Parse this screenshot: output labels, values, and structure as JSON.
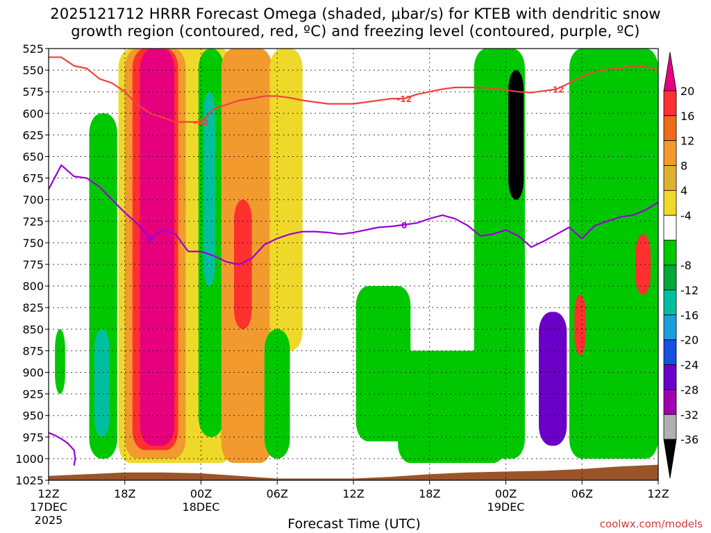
{
  "header": {
    "title_line1": "2025121712 HRRR Forecast Omega (shaded, μbar/s) for KTEB with dendritic snow",
    "title_line2": "growth region (contoured, red, ºC) and freezing level (contoured, purple, ºC)"
  },
  "footer": {
    "site": "coolwx.com/models"
  },
  "chart_data": {
    "type": "heatmap",
    "title": "2025121712 HRRR Forecast Omega (shaded, μbar/s) for KTEB with dendritic snow growth region (contoured, red, ºC) and freezing level (contoured, purple, ºC)",
    "xlabel": "Forecast Time (UTC)",
    "ylabel": "Pressure (hPa)",
    "x_range_hours": [
      0,
      48
    ],
    "x_ticks": [
      {
        "hour": 0,
        "label": "12Z",
        "sub1": "17DEC",
        "sub2": "2025"
      },
      {
        "hour": 6,
        "label": "18Z",
        "sub1": "",
        "sub2": ""
      },
      {
        "hour": 12,
        "label": "00Z",
        "sub1": "18DEC",
        "sub2": ""
      },
      {
        "hour": 18,
        "label": "06Z",
        "sub1": "",
        "sub2": ""
      },
      {
        "hour": 24,
        "label": "12Z",
        "sub1": "",
        "sub2": ""
      },
      {
        "hour": 30,
        "label": "18Z",
        "sub1": "",
        "sub2": ""
      },
      {
        "hour": 36,
        "label": "00Z",
        "sub1": "19DEC",
        "sub2": ""
      },
      {
        "hour": 42,
        "label": "06Z",
        "sub1": "",
        "sub2": ""
      },
      {
        "hour": 48,
        "label": "12Z",
        "sub1": "",
        "sub2": ""
      }
    ],
    "y_ticks": [
      525,
      550,
      575,
      600,
      625,
      650,
      675,
      700,
      725,
      750,
      775,
      800,
      825,
      850,
      875,
      900,
      925,
      950,
      975,
      1000,
      1025
    ],
    "y_range_hpa": [
      525,
      1025
    ],
    "colorbar": {
      "labels": [
        "20",
        "16",
        "12",
        "8",
        "4",
        "-4",
        "-8",
        "-12",
        "-16",
        "-20",
        "-24",
        "-28",
        "-32",
        "-36"
      ],
      "bins": [
        {
          "color": "#e6007e"
        },
        {
          "color": "#ff3030"
        },
        {
          "color": "#f06a1c"
        },
        {
          "color": "#f29a2e"
        },
        {
          "color": "#e0b030"
        },
        {
          "color": "#eed92a"
        },
        {
          "color": "#ffffff"
        },
        {
          "color": "#00c800"
        },
        {
          "color": "#00a838"
        },
        {
          "color": "#00bfa0"
        },
        {
          "color": "#18a0dc"
        },
        {
          "color": "#1850e0"
        },
        {
          "color": "#6a00c8"
        },
        {
          "color": "#a000b0"
        },
        {
          "color": "#b0b0b0"
        },
        {
          "color": "#000000"
        }
      ]
    },
    "omega_features": [
      {
        "name": "upward-core-green-early",
        "t0": 3.2,
        "t1": 5.4,
        "p_top": 600,
        "p_bot": 1000,
        "color": "#00c800"
      },
      {
        "name": "upward-core-teal-early",
        "t0": 3.6,
        "t1": 4.8,
        "p_top": 850,
        "p_bot": 975,
        "color": "#00bfa0"
      },
      {
        "name": "upward-green-small",
        "t0": 0.5,
        "t1": 1.3,
        "p_top": 850,
        "p_bot": 925,
        "color": "#00c800"
      },
      {
        "name": "downward-yellow-band",
        "t0": 5.5,
        "t1": 14.5,
        "p_top": 525,
        "p_bot": 1005,
        "color": "#eed92a"
      },
      {
        "name": "downward-orange-band",
        "t0": 6.0,
        "t1": 10.8,
        "p_top": 525,
        "p_bot": 1000,
        "color": "#f29a2e"
      },
      {
        "name": "downward-red-band",
        "t0": 6.6,
        "t1": 10.2,
        "p_top": 525,
        "p_bot": 990,
        "color": "#ff3030"
      },
      {
        "name": "downward-magenta-core",
        "t0": 7.2,
        "t1": 9.9,
        "p_top": 525,
        "p_bot": 985,
        "color": "#e6007e"
      },
      {
        "name": "upward-green-midnight",
        "t0": 11.8,
        "t1": 13.8,
        "p_top": 525,
        "p_bot": 975,
        "color": "#00c800"
      },
      {
        "name": "upward-teal-midnight",
        "t0": 12.2,
        "t1": 13.1,
        "p_top": 575,
        "p_bot": 800,
        "color": "#00bfa0"
      },
      {
        "name": "downward-orange-18dec",
        "t0": 13.6,
        "t1": 17.6,
        "p_top": 525,
        "p_bot": 1005,
        "color": "#f29a2e"
      },
      {
        "name": "downward-red-18dec",
        "t0": 14.6,
        "t1": 16.0,
        "p_top": 700,
        "p_bot": 850,
        "color": "#ff3030"
      },
      {
        "name": "downward-yellow-06z",
        "t0": 17.4,
        "t1": 20.0,
        "p_top": 525,
        "p_bot": 875,
        "color": "#eed92a"
      },
      {
        "name": "upward-green-06z",
        "t0": 17.0,
        "t1": 19.0,
        "p_top": 850,
        "p_bot": 1000,
        "color": "#00c800"
      },
      {
        "name": "upward-green-12z",
        "t0": 24.2,
        "t1": 28.5,
        "p_top": 800,
        "p_bot": 980,
        "color": "#00c800"
      },
      {
        "name": "upward-green-18z",
        "t0": 27.5,
        "t1": 36.0,
        "p_top": 875,
        "p_bot": 1005,
        "color": "#00c800"
      },
      {
        "name": "upward-green-00z19",
        "t0": 33.5,
        "t1": 37.5,
        "p_top": 525,
        "p_bot": 1000,
        "color": "#00c800"
      },
      {
        "name": "upward-core-00z19",
        "t0": 36.2,
        "t1": 37.4,
        "p_top": 550,
        "p_bot": 700,
        "color": "#000000"
      },
      {
        "name": "upward-core-04z19",
        "t0": 38.6,
        "t1": 40.8,
        "p_top": 830,
        "p_bot": 985,
        "color": "#6a00c8"
      },
      {
        "name": "upward-green-late",
        "t0": 41.0,
        "t1": 48.0,
        "p_top": 525,
        "p_bot": 1000,
        "color": "#00c800"
      },
      {
        "name": "downward-red-06z19",
        "t0": 41.4,
        "t1": 42.3,
        "p_top": 810,
        "p_bot": 880,
        "color": "#ff3030"
      },
      {
        "name": "downward-red-12z19",
        "t0": 46.2,
        "t1": 47.4,
        "p_top": 740,
        "p_bot": 810,
        "color": "#ff3030"
      }
    ],
    "series": [
      {
        "name": "dendritic snow growth -12C isotherm",
        "color": "#f04040",
        "label": "-12",
        "hours": [
          0,
          1,
          2,
          3,
          4,
          5,
          6,
          7,
          8,
          9,
          10,
          11,
          12,
          13,
          14,
          15,
          16,
          17,
          18,
          19,
          20,
          21,
          22,
          23,
          24,
          25,
          26,
          27,
          28,
          29,
          30,
          31,
          32,
          33,
          34,
          35,
          36,
          37,
          38,
          39,
          40,
          41,
          42,
          43,
          44,
          45,
          46,
          47,
          48
        ],
        "pressure": [
          535,
          535,
          545,
          548,
          560,
          565,
          575,
          590,
          600,
          605,
          610,
          610,
          610,
          595,
          590,
          585,
          583,
          580,
          580,
          582,
          585,
          587,
          589,
          589,
          589,
          587,
          585,
          583,
          583,
          578,
          575,
          572,
          570,
          570,
          570,
          571,
          573,
          575,
          576,
          574,
          572,
          565,
          557,
          552,
          549,
          548,
          545,
          546,
          550
        ]
      },
      {
        "name": "freezing level 0C isotherm",
        "color": "#9a00d6",
        "label": "0",
        "hours": [
          0,
          1,
          2,
          3,
          4,
          5,
          6,
          7,
          8,
          9,
          10,
          11,
          12,
          13,
          14,
          15,
          16,
          17,
          18,
          19,
          20,
          21,
          22,
          23,
          24,
          25,
          26,
          27,
          28,
          29,
          30,
          31,
          32,
          33,
          34,
          35,
          36,
          37,
          38,
          39,
          40,
          41,
          42,
          43,
          44,
          45,
          46,
          47,
          48
        ],
        "pressure": [
          688,
          660,
          673,
          675,
          685,
          700,
          715,
          728,
          745,
          735,
          740,
          760,
          760,
          765,
          772,
          775,
          768,
          752,
          745,
          740,
          737,
          737,
          738,
          740,
          738,
          735,
          732,
          731,
          729,
          727,
          722,
          718,
          722,
          730,
          742,
          740,
          735,
          742,
          755,
          748,
          740,
          732,
          745,
          730,
          725,
          720,
          718,
          712,
          703
        ]
      },
      {
        "name": "freezing level 0C near surface",
        "color": "#9a00d6",
        "label": "",
        "hours": [
          0,
          0.5,
          1,
          1.5,
          2.0,
          2.1,
          2.0
        ],
        "pressure": [
          970,
          973,
          977,
          982,
          990,
          1000,
          1008
        ]
      }
    ],
    "terrain": {
      "color": "#9b542a",
      "surface_hours": [
        0,
        3,
        6,
        9,
        12,
        15,
        18,
        21,
        24,
        27,
        30,
        33,
        36,
        39,
        42,
        45,
        48
      ],
      "surface_pressure": [
        1020,
        1018,
        1016,
        1016,
        1017,
        1020,
        1023,
        1023,
        1023,
        1021,
        1018,
        1016,
        1015,
        1014,
        1012,
        1009,
        1007
      ]
    }
  }
}
